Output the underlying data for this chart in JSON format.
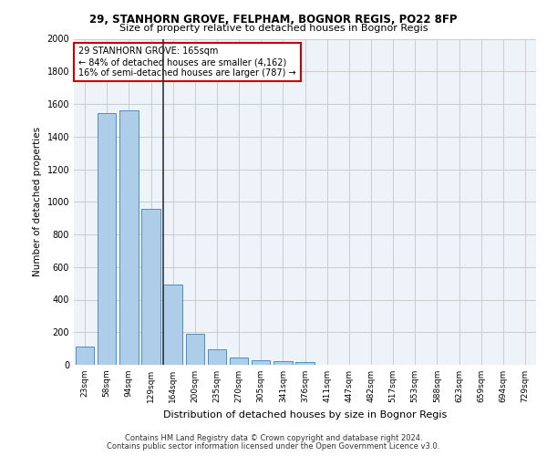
{
  "title1": "29, STANHORN GROVE, FELPHAM, BOGNOR REGIS, PO22 8FP",
  "title2": "Size of property relative to detached houses in Bognor Regis",
  "xlabel": "Distribution of detached houses by size in Bognor Regis",
  "ylabel": "Number of detached properties",
  "categories": [
    "23sqm",
    "58sqm",
    "94sqm",
    "129sqm",
    "164sqm",
    "200sqm",
    "235sqm",
    "270sqm",
    "305sqm",
    "341sqm",
    "376sqm",
    "411sqm",
    "447sqm",
    "482sqm",
    "517sqm",
    "553sqm",
    "588sqm",
    "623sqm",
    "659sqm",
    "694sqm",
    "729sqm"
  ],
  "values": [
    110,
    1545,
    1560,
    955,
    490,
    190,
    95,
    45,
    30,
    20,
    15,
    0,
    0,
    0,
    0,
    0,
    0,
    0,
    0,
    0,
    0
  ],
  "bar_color": "#aecde8",
  "bar_edge_color": "#4a90c4",
  "vline_index": 4,
  "annotation_title": "29 STANHORN GROVE: 165sqm",
  "annotation_line1": "← 84% of detached houses are smaller (4,162)",
  "annotation_line2": "16% of semi-detached houses are larger (787) →",
  "annotation_box_color": "#ffffff",
  "annotation_box_edge_color": "#cc0000",
  "vline_color": "#333333",
  "ylim": [
    0,
    2000
  ],
  "yticks": [
    0,
    200,
    400,
    600,
    800,
    1000,
    1200,
    1400,
    1600,
    1800,
    2000
  ],
  "grid_color": "#cccccc",
  "bg_color": "#eef3fa",
  "footer1": "Contains HM Land Registry data © Crown copyright and database right 2024.",
  "footer2": "Contains public sector information licensed under the Open Government Licence v3.0."
}
